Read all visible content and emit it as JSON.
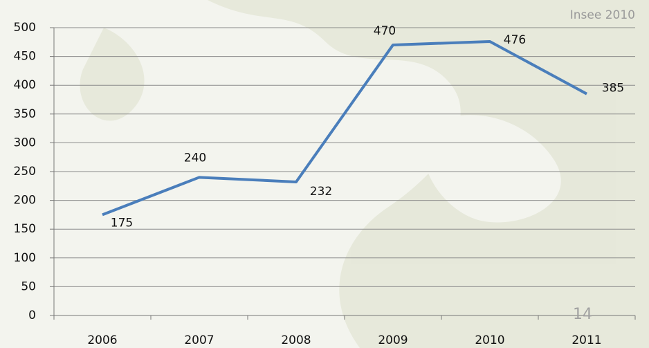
{
  "chart_data": {
    "type": "line",
    "source": "Insee 2010",
    "page_number": "14",
    "categories": [
      "2006",
      "2007",
      "2008",
      "2009",
      "2010",
      "2011"
    ],
    "series": [
      {
        "color": "#4a7ebb",
        "values": [
          175,
          240,
          232,
          470,
          476,
          385
        ]
      }
    ],
    "ylim": [
      0,
      500
    ],
    "yticks": [
      0,
      50,
      100,
      150,
      200,
      250,
      300,
      350,
      400,
      450,
      500
    ],
    "grid": true
  }
}
